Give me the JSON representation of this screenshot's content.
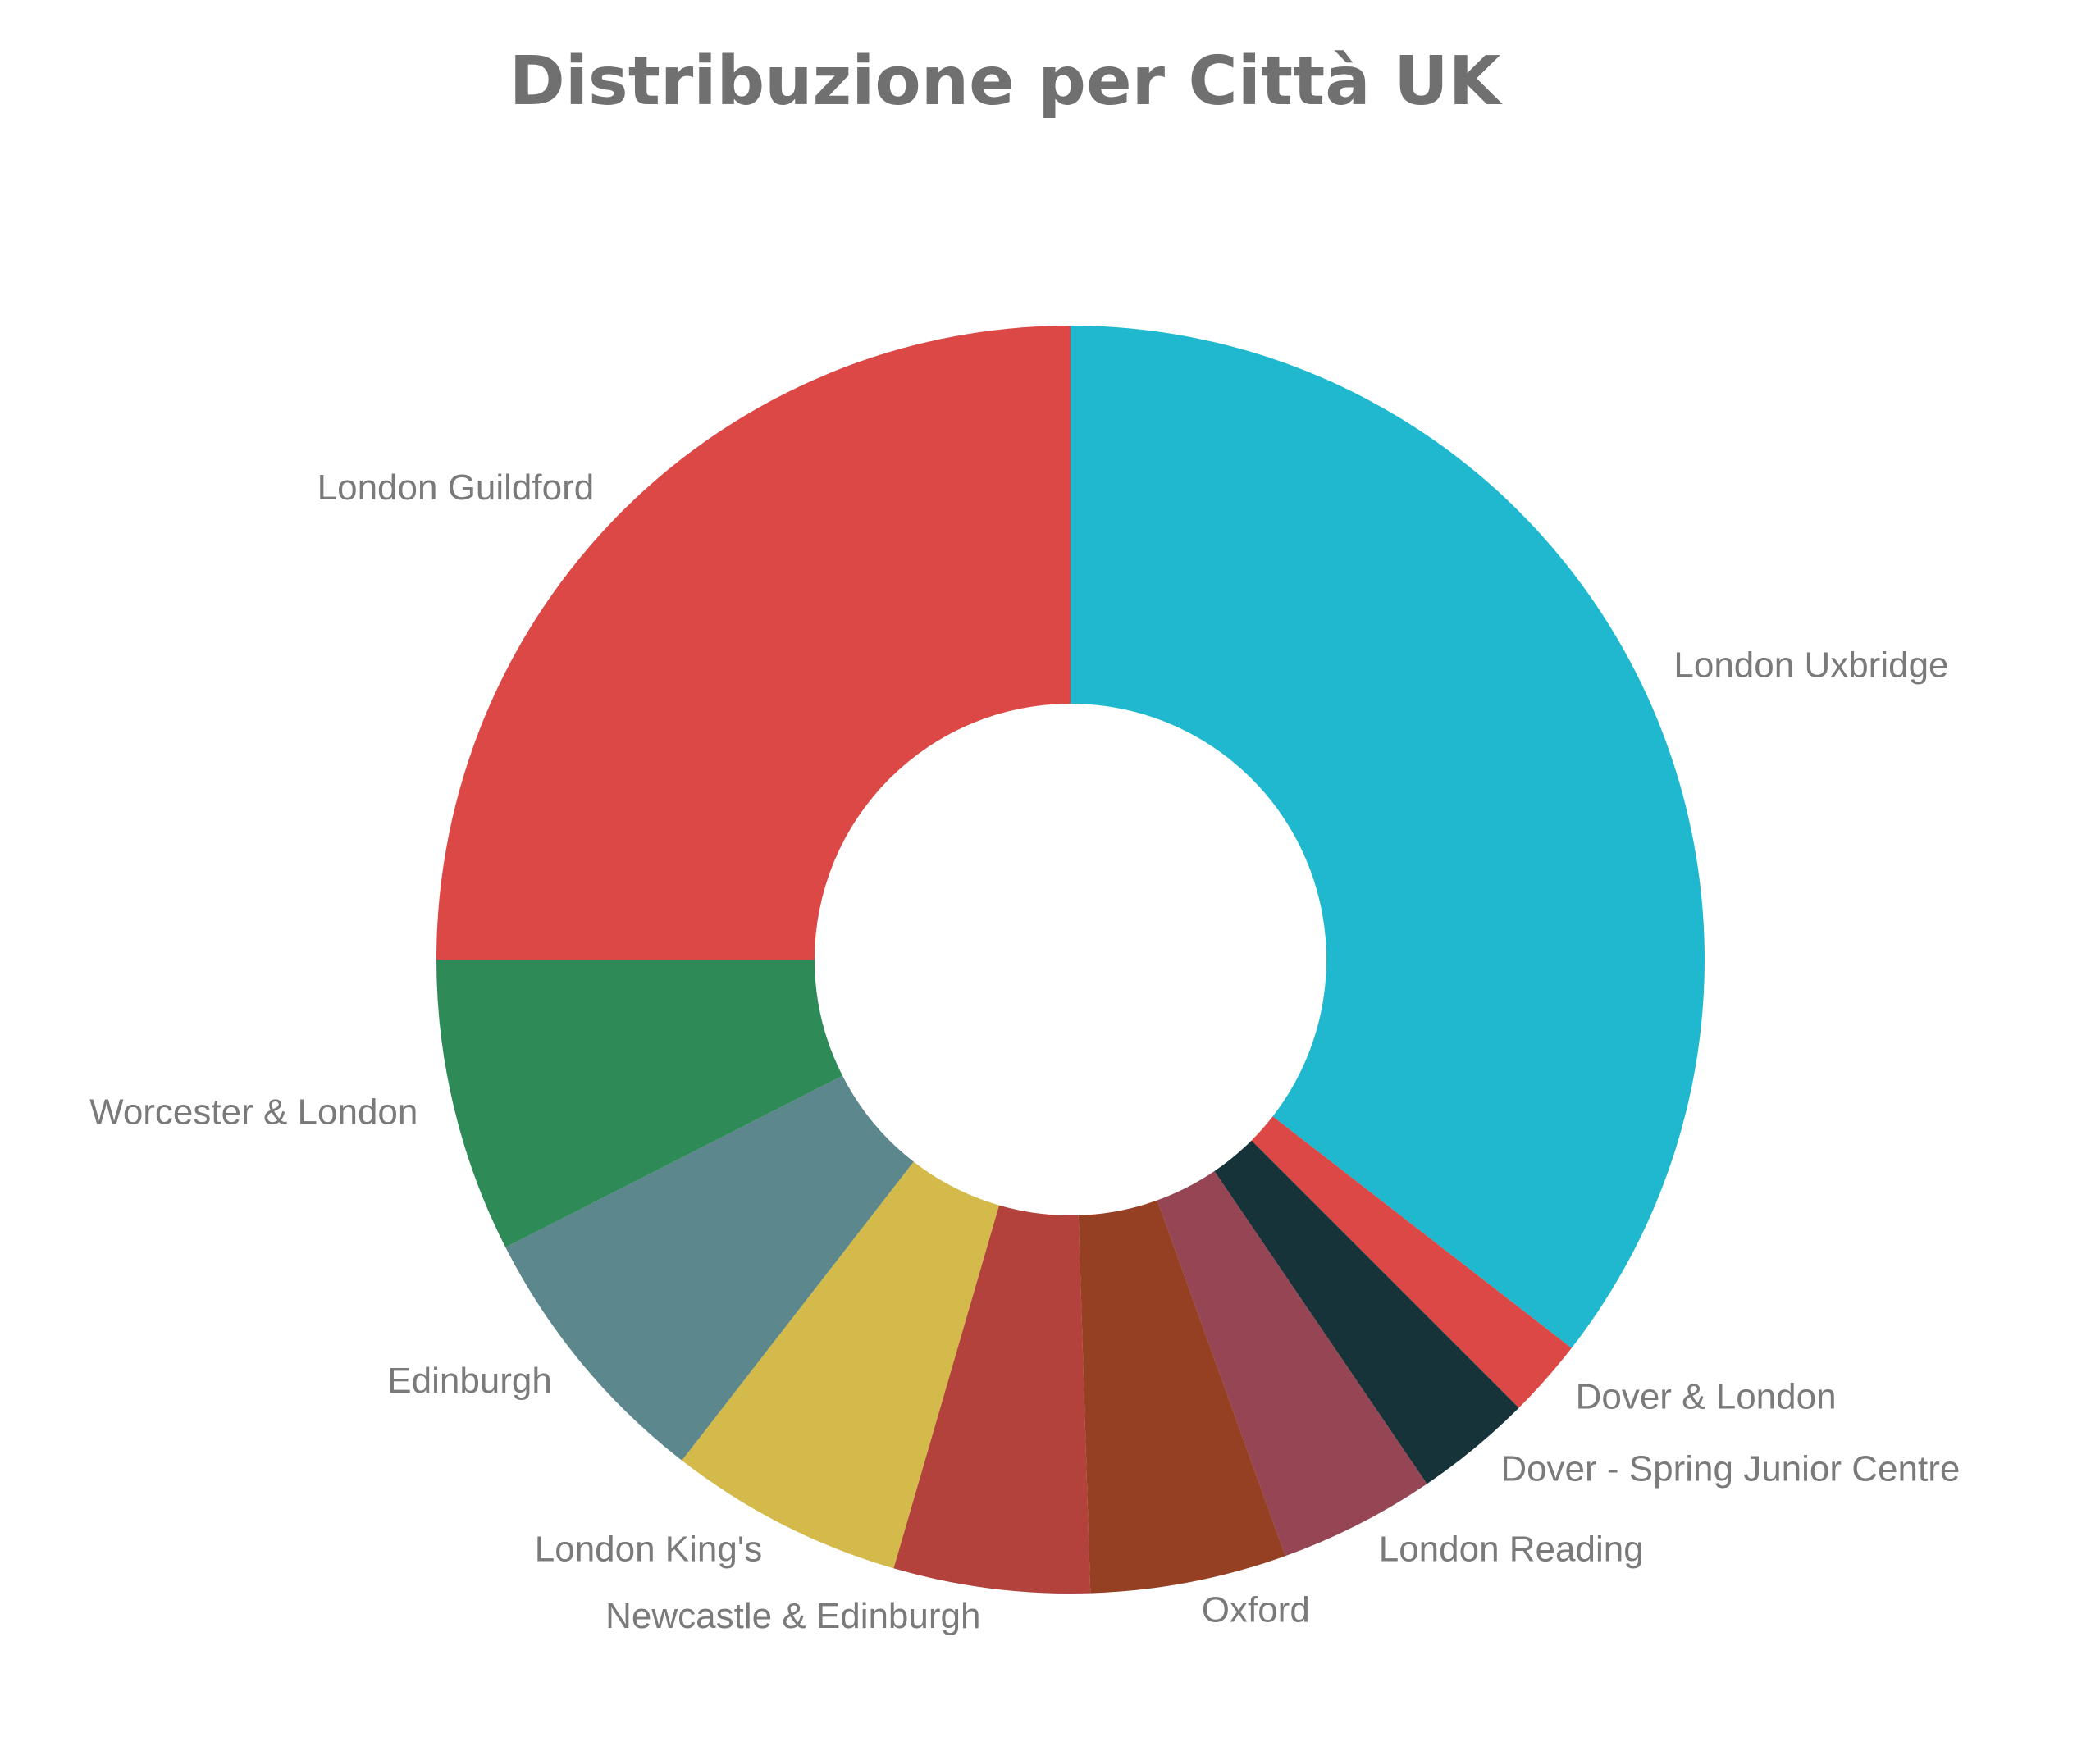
{
  "chart_data": {
    "type": "pie",
    "title": "Distribuzione per Città UK",
    "donut": true,
    "legend": "none",
    "slices": [
      {
        "label": "London Uxbridge",
        "value": 35.5,
        "color": "#20B8CE"
      },
      {
        "label": "Dover & London",
        "value": 2.0,
        "color": "#DB4845"
      },
      {
        "label": "Dover - Spring Junior Centre",
        "value": 3.0,
        "color": "#16333A"
      },
      {
        "label": "London Reading",
        "value": 4.0,
        "color": "#954553"
      },
      {
        "label": "Oxford",
        "value": 5.0,
        "color": "#953F23"
      },
      {
        "label": "Newcastle & Edinburgh",
        "value": 5.0,
        "color": "#B2423B"
      },
      {
        "label": "London King's",
        "value": 6.0,
        "color": "#D3BA4B"
      },
      {
        "label": "Edinburgh",
        "value": 7.0,
        "color": "#5C878C"
      },
      {
        "label": "Worcester & London",
        "value": 7.5,
        "color": "#2E8A57"
      },
      {
        "label": "London Guildford",
        "value": 25.0,
        "color": "#DB4845"
      }
    ]
  }
}
